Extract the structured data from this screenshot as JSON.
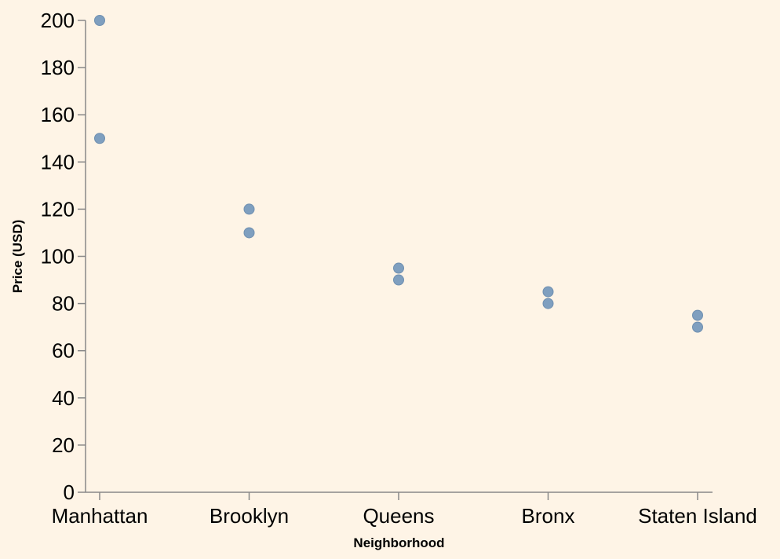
{
  "chart_data": {
    "type": "scatter",
    "title": "",
    "xlabel": "Neighborhood",
    "ylabel": "Price (USD)",
    "categories": [
      "Manhattan",
      "Brooklyn",
      "Queens",
      "Bronx",
      "Staten Island"
    ],
    "y_ticks": [
      0,
      20,
      40,
      60,
      80,
      100,
      120,
      140,
      160,
      180,
      200
    ],
    "ylim": [
      0,
      200
    ],
    "grid": false,
    "legend": "none",
    "point_color": "#7f9fbf",
    "background": "#fef4e6",
    "points": [
      {
        "x": "Manhattan",
        "y": 200
      },
      {
        "x": "Manhattan",
        "y": 150
      },
      {
        "x": "Brooklyn",
        "y": 120
      },
      {
        "x": "Brooklyn",
        "y": 110
      },
      {
        "x": "Queens",
        "y": 95
      },
      {
        "x": "Queens",
        "y": 90
      },
      {
        "x": "Bronx",
        "y": 85
      },
      {
        "x": "Bronx",
        "y": 80
      },
      {
        "x": "Staten Island",
        "y": 75
      },
      {
        "x": "Staten Island",
        "y": 70
      }
    ]
  }
}
